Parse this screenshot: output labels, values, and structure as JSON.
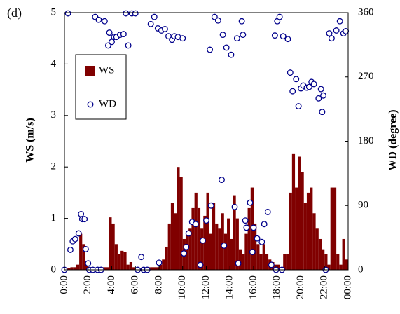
{
  "chart_data": {
    "type": "bar-scatter",
    "panel_label": "(d)",
    "ylabel": "WS (m/s)",
    "y2label": "WD (degree)",
    "xlim": [
      0,
      24
    ],
    "xticks": [
      {
        "value": 0,
        "label": "0:00"
      },
      {
        "value": 2,
        "label": "2:00"
      },
      {
        "value": 4,
        "label": "4:00"
      },
      {
        "value": 6,
        "label": "6:00"
      },
      {
        "value": 8,
        "label": "8:00"
      },
      {
        "value": 10,
        "label": "10:00"
      },
      {
        "value": 12,
        "label": "12:00"
      },
      {
        "value": 14,
        "label": "14:00"
      },
      {
        "value": 16,
        "label": "16:00"
      },
      {
        "value": 18,
        "label": "18:00"
      },
      {
        "value": 20,
        "label": "20:00"
      },
      {
        "value": 22,
        "label": "22:00"
      },
      {
        "value": 24,
        "label": "00:00"
      }
    ],
    "ylim": [
      0,
      5
    ],
    "yticks": [
      0,
      1,
      2,
      3,
      4,
      5
    ],
    "y2lim": [
      0,
      360
    ],
    "y2ticks": [
      0,
      90,
      180,
      270,
      360
    ],
    "legend": "upper left",
    "series": [
      {
        "name": "WS",
        "type": "bar",
        "color": "#800000",
        "x": [
          0,
          0.25,
          0.5,
          0.75,
          1,
          1.25,
          1.5,
          1.75,
          2,
          2.25,
          2.5,
          2.75,
          3,
          3.25,
          3.5,
          3.75,
          4,
          4.25,
          4.5,
          4.75,
          5,
          5.25,
          5.5,
          5.75,
          6,
          6.25,
          6.5,
          6.75,
          7,
          7.25,
          7.5,
          7.75,
          8,
          8.25,
          8.5,
          8.75,
          9,
          9.25,
          9.5,
          9.75,
          10,
          10.25,
          10.5,
          10.75,
          11,
          11.25,
          11.5,
          11.75,
          12,
          12.25,
          12.5,
          12.75,
          13,
          13.25,
          13.5,
          13.75,
          14,
          14.25,
          14.5,
          14.75,
          15,
          15.25,
          15.5,
          15.75,
          16,
          16.25,
          16.5,
          16.75,
          17,
          17.25,
          17.5,
          17.75,
          18,
          18.25,
          18.5,
          18.75,
          19,
          19.25,
          19.5,
          19.75,
          20,
          20.25,
          20.5,
          20.75,
          21,
          21.25,
          21.5,
          21.75,
          22,
          22.25,
          22.5,
          22.75,
          23,
          23.25,
          23.5,
          23.75
        ],
        "values": [
          0.02,
          0.03,
          0.05,
          0.05,
          0.1,
          0.7,
          0.5,
          0.1,
          0.05,
          0.05,
          0.03,
          0.03,
          0.05,
          0.05,
          0.05,
          1.02,
          0.9,
          0.5,
          0.3,
          0.37,
          0.35,
          0.1,
          0.15,
          0.05,
          0.02,
          0.02,
          0.05,
          0.05,
          0.05,
          0.05,
          0.05,
          0.05,
          0.1,
          0.2,
          0.45,
          0.9,
          1.3,
          1.1,
          2.0,
          1.8,
          0.6,
          0.7,
          0.8,
          1.2,
          1.5,
          1.2,
          0.8,
          1.05,
          1.5,
          0.7,
          1.3,
          0.9,
          0.8,
          1.1,
          0.7,
          1.0,
          0.6,
          1.45,
          1.0,
          0.4,
          0.3,
          0.7,
          1.2,
          1.6,
          0.9,
          0.5,
          0.3,
          0.5,
          0.3,
          0.2,
          0.15,
          0.1,
          0.1,
          0.05,
          0.3,
          0.3,
          1.5,
          2.25,
          1.6,
          2.2,
          1.9,
          1.3,
          1.5,
          1.6,
          1.1,
          0.8,
          0.6,
          0.4,
          0.3,
          0.1,
          1.6,
          1.6,
          0.3,
          0.1,
          0.6,
          0.2
        ]
      },
      {
        "name": "WD",
        "type": "scatter",
        "axis": "y2",
        "color": "#00008b",
        "x": [
          0,
          0.3,
          0.5,
          0.7,
          0.9,
          1.2,
          1.4,
          1.5,
          1.7,
          1.8,
          2.0,
          2.1,
          2.4,
          2.8,
          3.1,
          2.6,
          2.9,
          3.4,
          3.7,
          3.8,
          4.0,
          4.2,
          4.4,
          4.7,
          5.0,
          5.2,
          5.4,
          5.7,
          6.0,
          6.2,
          6.5,
          6.7,
          7.0,
          7.3,
          7.6,
          7.9,
          8.0,
          8.2,
          8.5,
          8.8,
          9.1,
          9.3,
          9.6,
          10.0,
          10.1,
          10.3,
          10.5,
          10.8,
          11.1,
          11.5,
          11.7,
          12.0,
          12.3,
          12.4,
          12.7,
          13.0,
          13.3,
          13.4,
          13.5,
          13.7,
          14.1,
          14.4,
          14.6,
          14.7,
          15.0,
          15.1,
          15.3,
          15.4,
          15.7,
          15.9,
          16.0,
          16.3,
          16.7,
          16.9,
          17.2,
          17.5,
          17.8,
          17.9,
          18.0,
          18.2,
          18.4,
          18.5,
          18.9,
          19.1,
          19.3,
          19.6,
          19.8,
          20.0,
          20.2,
          20.5,
          20.7,
          20.9,
          21.1,
          21.5,
          21.7,
          21.8,
          21.9,
          22.1,
          22.4,
          22.6,
          23.0,
          23.3,
          23.6,
          23.8
        ],
        "values": [
          0,
          359,
          28,
          40,
          43,
          51,
          78,
          71,
          71,
          29,
          9,
          0,
          0,
          0,
          0,
          354,
          350,
          348,
          314,
          332,
          319,
          326,
          326,
          329,
          330,
          359,
          314,
          359,
          359,
          0,
          18,
          0,
          0,
          344,
          354,
          338,
          10,
          335,
          337,
          327,
          322,
          327,
          326,
          324,
          23,
          32,
          51,
          67,
          64,
          7,
          41,
          69,
          308,
          90,
          354,
          349,
          126,
          329,
          34,
          311,
          301,
          88,
          324,
          9,
          348,
          329,
          69,
          59,
          94,
          25,
          59,
          44,
          39,
          64,
          81,
          7,
          328,
          0,
          348,
          354,
          0,
          327,
          323,
          276,
          250,
          267,
          229,
          254,
          258,
          255,
          256,
          263,
          260,
          240,
          253,
          221,
          244,
          0,
          331,
          324,
          335,
          348,
          331,
          334
        ]
      }
    ]
  }
}
